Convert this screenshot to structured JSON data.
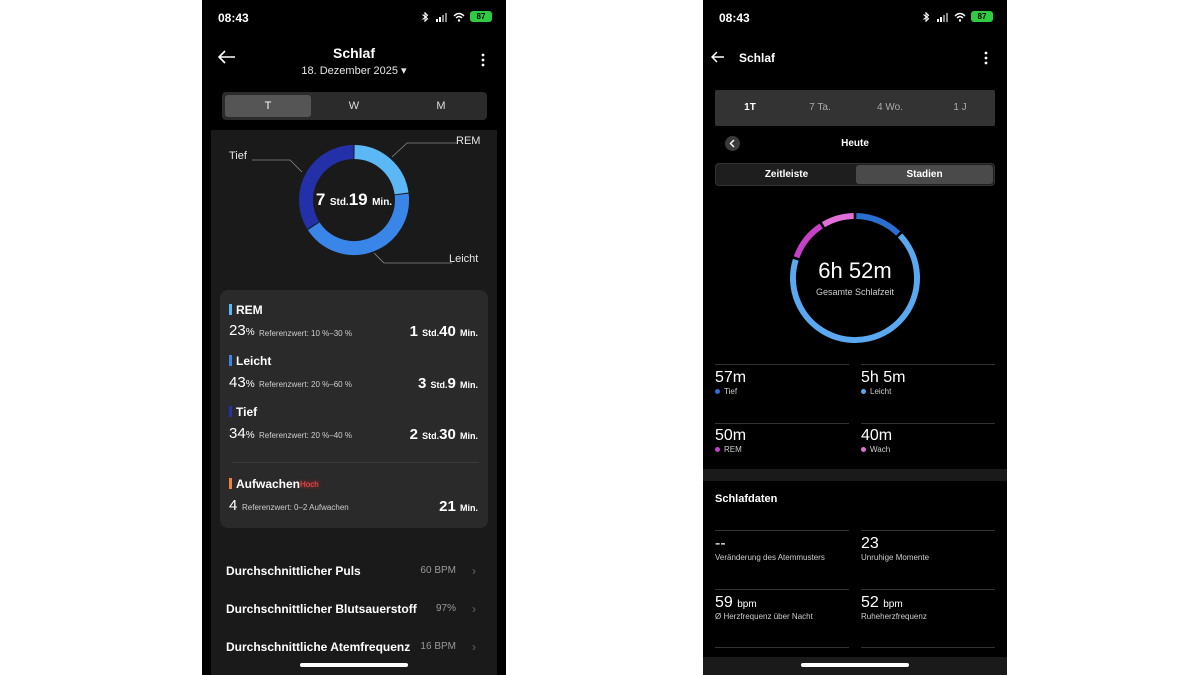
{
  "phone1": {
    "status": {
      "time": "08:43",
      "battery": "87"
    },
    "header": {
      "title": "Schlaf",
      "date": "18. Dezember 2025 ▾"
    },
    "tabs": [
      "T",
      "W",
      "M"
    ],
    "selected_tab": "T",
    "donut": {
      "center_hours": "7",
      "center_hours_unit": "Std.",
      "center_minutes": "19",
      "center_minutes_unit": "Min.",
      "labels": {
        "rem": "REM",
        "tief": "Tief",
        "leicht": "Leicht"
      },
      "colors": {
        "rem": "#5bb8f5",
        "leicht": "#3a86e8",
        "tief": "#2330a8"
      },
      "shares_percent": {
        "rem": 23,
        "leicht": 43,
        "tief": 34
      }
    },
    "stages": [
      {
        "name": "REM",
        "pct": "23",
        "pct_unit": "%",
        "ref": "Referenzwert: 10 %–30 %",
        "h": "1",
        "h_unit": "Std.",
        "m": "40",
        "m_unit": "Min.",
        "color": "#5bb8f5"
      },
      {
        "name": "Leicht",
        "pct": "43",
        "pct_unit": "%",
        "ref": "Referenzwert: 20 %–60 %",
        "h": "3",
        "h_unit": "Std.",
        "m": "9",
        "m_unit": "Min.",
        "color": "#3a86e8"
      },
      {
        "name": "Tief",
        "pct": "34",
        "pct_unit": "%",
        "ref": "Referenzwert: 20 %–40 %",
        "h": "2",
        "h_unit": "Std.",
        "m": "30",
        "m_unit": "Min.",
        "color": "#2330a8"
      }
    ],
    "awake": {
      "name": "Aufwachen",
      "badge": "Hoch",
      "count": "4",
      "ref": "Referenzwert: 0–2 Aufwachen",
      "m": "21",
      "m_unit": "Min.",
      "color": "#f08040"
    },
    "metrics": [
      {
        "label": "Durchschnittlicher Puls",
        "value": "60 BPM"
      },
      {
        "label": "Durchschnittlicher Blutsauerstoff",
        "value": "97%"
      },
      {
        "label": "Durchschnittliche Atemfrequenz",
        "value": "16 BPM"
      }
    ]
  },
  "phone2": {
    "status": {
      "time": "08:43",
      "battery": "87"
    },
    "header": {
      "title": "Schlaf"
    },
    "ranges": [
      "1T",
      "7 Ta.",
      "4 Wo.",
      "1 J"
    ],
    "selected_range": "1T",
    "day_label": "Heute",
    "views": [
      "Zeitleiste",
      "Stadien"
    ],
    "selected_view": "Stadien",
    "ring": {
      "total": "6h 52m",
      "total_label": "Gesamte Schlafzeit",
      "colors": {
        "tief": "#2a6fcf",
        "leicht": "#5aa9f0",
        "rem": "#c640c8",
        "wach": "#e070d8"
      }
    },
    "stages": [
      {
        "value": "57m",
        "label": "Tief",
        "color": "#2a6fcf"
      },
      {
        "value": "5h 5m",
        "label": "Leicht",
        "color": "#5aa9f0"
      },
      {
        "value": "50m",
        "label": "REM",
        "color": "#c640c8"
      },
      {
        "value": "40m",
        "label": "Wach",
        "color": "#e070d8"
      }
    ],
    "section_title": "Schlafdaten",
    "data": [
      {
        "value": "--",
        "unit": "",
        "label": "Veränderung des Atemmusters"
      },
      {
        "value": "23",
        "unit": "",
        "label": "Unruhige Momente"
      },
      {
        "value": "59",
        "unit": "bpm",
        "label": "Ø Herzfrequenz über Nacht"
      },
      {
        "value": "52",
        "unit": "bpm",
        "label": "Ruheherzfrequenz"
      }
    ]
  }
}
